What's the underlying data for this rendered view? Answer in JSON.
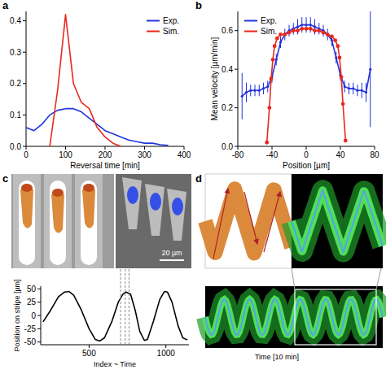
{
  "chart_data": [
    {
      "type": "line",
      "panel_label": "a",
      "x_label": "Reversal time [min]",
      "xlim": [
        0,
        400
      ],
      "xticks": [
        0,
        100,
        200,
        300,
        400
      ],
      "ylim": [
        0,
        0.43
      ],
      "yticks": [
        {
          "value": 0,
          "label": "0.0"
        },
        {
          "value": 0.1,
          "label": "0.1"
        },
        {
          "value": 0.2,
          "label": "0.2"
        },
        {
          "value": 0.3,
          "label": "0.3"
        },
        {
          "value": 0.4,
          "label": "0.4"
        }
      ],
      "grid": false,
      "legend": "top-right",
      "series": [
        {
          "name": "Exp.",
          "color": "#2233dd",
          "x": [
            0,
            20,
            40,
            60,
            80,
            100,
            120,
            140,
            160,
            180,
            200,
            220,
            240,
            260,
            280,
            300,
            320,
            340,
            360
          ],
          "values": [
            0.06,
            0.05,
            0.07,
            0.1,
            0.115,
            0.12,
            0.12,
            0.11,
            0.09,
            0.07,
            0.05,
            0.04,
            0.03,
            0.02,
            0.015,
            0.01,
            0.01,
            0.005,
            0.003
          ]
        },
        {
          "name": "Sim.",
          "color": "#e8281e",
          "x": [
            60,
            80,
            100,
            120,
            140,
            160,
            180,
            200,
            220,
            240
          ],
          "values": [
            0,
            0.18,
            0.42,
            0.2,
            0.14,
            0.12,
            0.06,
            0.03,
            0.01,
            0
          ]
        }
      ]
    },
    {
      "type": "line",
      "panel_label": "b",
      "x_label": "Position [µm]",
      "y_label": "Mean velocity [µm/min]",
      "xlim": [
        -80,
        80
      ],
      "xticks": [
        -80,
        -40,
        0,
        40,
        80
      ],
      "ylim": [
        0,
        0.7
      ],
      "yticks": [
        {
          "value": 0,
          "label": "0.0"
        },
        {
          "value": 0.2,
          "label": "0.2"
        },
        {
          "value": 0.4,
          "label": "0.4"
        },
        {
          "value": 0.6,
          "label": "0.6"
        }
      ],
      "grid": false,
      "legend": "top-left",
      "series": [
        {
          "name": "Exp.",
          "color": "#2233dd",
          "marker": "dot",
          "x": [
            -75,
            -70,
            -65,
            -60,
            -55,
            -50,
            -45,
            -40,
            -35,
            -30,
            -25,
            -20,
            -15,
            -10,
            -5,
            0,
            5,
            10,
            15,
            20,
            25,
            30,
            35,
            40,
            45,
            50,
            55,
            60,
            65,
            70,
            75
          ],
          "values": [
            0.26,
            0.28,
            0.29,
            0.29,
            0.29,
            0.3,
            0.31,
            0.36,
            0.45,
            0.54,
            0.58,
            0.6,
            0.61,
            0.62,
            0.63,
            0.63,
            0.63,
            0.62,
            0.61,
            0.6,
            0.58,
            0.55,
            0.46,
            0.37,
            0.31,
            0.3,
            0.3,
            0.29,
            0.29,
            0.28,
            0.4
          ],
          "errors": [
            0.12,
            0.05,
            0.03,
            0.03,
            0.03,
            0.03,
            0.03,
            0.03,
            0.03,
            0.03,
            0.03,
            0.03,
            0.03,
            0.04,
            0.04,
            0.04,
            0.04,
            0.04,
            0.03,
            0.03,
            0.03,
            0.03,
            0.03,
            0.03,
            0.03,
            0.03,
            0.03,
            0.03,
            0.04,
            0.05,
            0.3
          ]
        },
        {
          "name": "Sim.",
          "color": "#e8281e",
          "marker": "dot",
          "x": [
            -46,
            -43,
            -41,
            -39,
            -37,
            -34,
            -30,
            -25,
            -20,
            -15,
            -10,
            -5,
            0,
            5,
            10,
            15,
            20,
            25,
            30,
            34,
            37,
            39,
            41,
            43,
            46
          ],
          "values": [
            0.02,
            0.2,
            0.35,
            0.45,
            0.52,
            0.56,
            0.58,
            0.58,
            0.59,
            0.6,
            0.6,
            0.61,
            0.61,
            0.61,
            0.6,
            0.6,
            0.59,
            0.58,
            0.57,
            0.55,
            0.52,
            0.46,
            0.36,
            0.22,
            0.03
          ]
        }
      ]
    },
    {
      "type": "line",
      "panel_label": "c",
      "x_label": "Index ~ Time",
      "y_label": "Position on stripe [µm]",
      "xlim": [
        185,
        1150
      ],
      "xticks": [
        500,
        1000
      ],
      "ylim": [
        -55,
        55
      ],
      "yticks": [
        -50,
        -25,
        0,
        25,
        50
      ],
      "grid": false,
      "reference_x": [
        705,
        735,
        760
      ],
      "series": [
        {
          "color": "#000000",
          "x": [
            200,
            250,
            300,
            340,
            370,
            400,
            450,
            500,
            540,
            570,
            600,
            650,
            690,
            720,
            740,
            770,
            800,
            830,
            860,
            880,
            920,
            960,
            990,
            1010,
            1040,
            1080,
            1110,
            1140
          ],
          "values": [
            -12,
            10,
            35,
            44,
            45,
            38,
            10,
            -25,
            -45,
            -48,
            -42,
            -10,
            25,
            40,
            44,
            40,
            10,
            -30,
            -47,
            -45,
            -10,
            30,
            45,
            44,
            25,
            -20,
            -42,
            -46
          ]
        }
      ]
    }
  ],
  "images": {
    "scale_bar": "20 µm",
    "panel_label": "d",
    "x_label": "Time [10 min]"
  }
}
